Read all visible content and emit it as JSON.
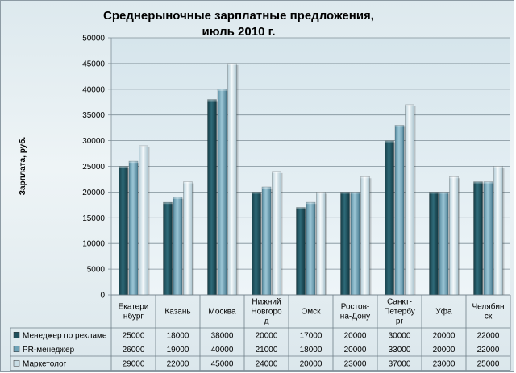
{
  "chart_data": {
    "type": "bar",
    "title": [
      "Среднерыночные  зарплатные  предложения,",
      "июль 2010 г."
    ],
    "ylabel": "Зарплата,  руб.",
    "xlabel": "",
    "ylim": [
      0,
      50000
    ],
    "yticks": [
      "0",
      "5000",
      "10000",
      "15000",
      "20000",
      "25000",
      "30000",
      "35000",
      "40000",
      "45000",
      "50000"
    ],
    "grid": true,
    "legend": "data-table",
    "categories": [
      [
        "Екатери",
        "нбург"
      ],
      [
        "Казань"
      ],
      [
        "Москва"
      ],
      [
        "Нижний",
        "Новгоро",
        "д"
      ],
      [
        "Омск"
      ],
      [
        "Ростов-",
        "на-Дону"
      ],
      [
        "Санкт-",
        "Петербу",
        "рг"
      ],
      [
        "Уфа"
      ],
      [
        "Челябин",
        "ск"
      ]
    ],
    "series": [
      {
        "name": "Менеджер  по рекламе",
        "color": "#1e4f5c",
        "values": [
          25000,
          18000,
          38000,
          20000,
          17000,
          20000,
          30000,
          20000,
          22000
        ]
      },
      {
        "name": "PR-менеджер",
        "color": "#6fa3b8",
        "values": [
          26000,
          19000,
          40000,
          21000,
          18000,
          20000,
          33000,
          20000,
          22000
        ]
      },
      {
        "name": "Маркетолог",
        "color": "#c9dde5",
        "values": [
          29000,
          22000,
          45000,
          24000,
          20000,
          23000,
          37000,
          23000,
          25000
        ]
      }
    ]
  }
}
